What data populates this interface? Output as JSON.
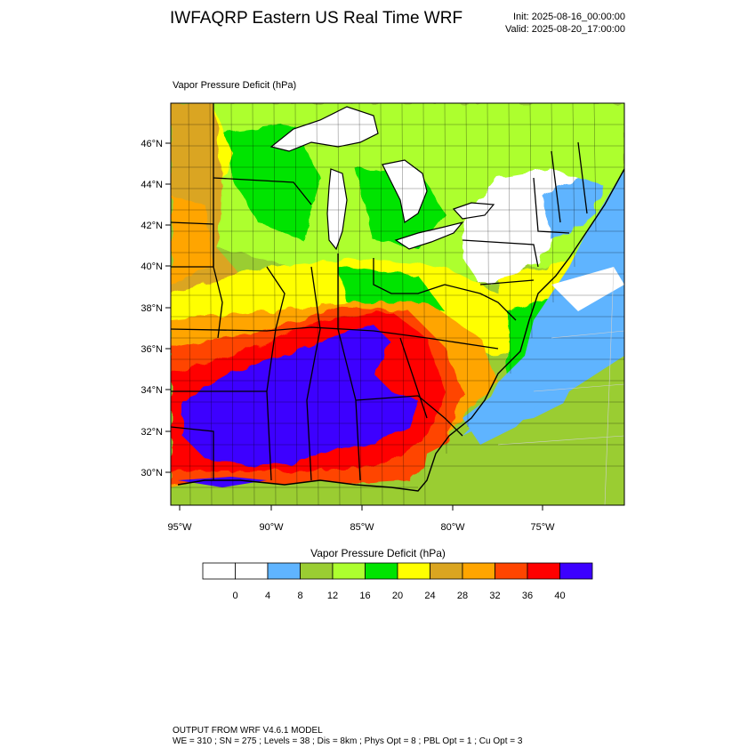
{
  "header": {
    "title": "IWFAQRP Eastern US Real Time WRF",
    "init": "Init: 2025-08-16_00:00:00",
    "valid": "Valid: 2025-08-20_17:00:00"
  },
  "map": {
    "field_title": "Vapor Pressure Deficit   (hPa)",
    "lat_labels": [
      "46°N",
      "44°N",
      "42°N",
      "40°N",
      "38°N",
      "36°N",
      "34°N",
      "32°N",
      "30°N"
    ],
    "lon_labels": [
      "95°W",
      "90°W",
      "85°W",
      "80°W",
      "75°W"
    ]
  },
  "legend": {
    "title": "Vapor Pressure Deficit  (hPa)",
    "labels": [
      "0",
      "4",
      "8",
      "12",
      "16",
      "20",
      "24",
      "28",
      "32",
      "36",
      "40"
    ],
    "colors": [
      "#ffffff",
      "#ffffff",
      "#5fb4ff",
      "#9acd32",
      "#adff2f",
      "#00e400",
      "#ffff00",
      "#daa520",
      "#ffa500",
      "#ff4500",
      "#ff0000",
      "#3c00ff"
    ]
  },
  "colors": {
    "land_default": "#9acd32",
    "water_lake": "#ffffff",
    "ocean": "#9acd32"
  },
  "footer": {
    "line1": "OUTPUT FROM WRF V4.6.1 MODEL",
    "line2": "WE = 310 ; SN = 275 ; Levels = 38 ; Dis = 8km ; Phys Opt = 8 ; PBL Opt = 1 ; Cu Opt = 3"
  }
}
